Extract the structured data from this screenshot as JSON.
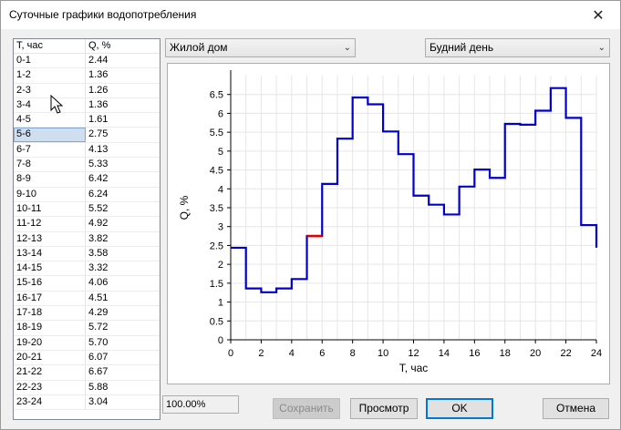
{
  "window": {
    "title": "Суточные графики водопотребления"
  },
  "table": {
    "headers": [
      "T, час",
      "Q, %"
    ],
    "rows": [
      [
        "0-1",
        "2.44"
      ],
      [
        "1-2",
        "1.36"
      ],
      [
        "2-3",
        "1.26"
      ],
      [
        "3-4",
        "1.36"
      ],
      [
        "4-5",
        "1.61"
      ],
      [
        "5-6",
        "2.75"
      ],
      [
        "6-7",
        "4.13"
      ],
      [
        "7-8",
        "5.33"
      ],
      [
        "8-9",
        "6.42"
      ],
      [
        "9-10",
        "6.24"
      ],
      [
        "10-11",
        "5.52"
      ],
      [
        "11-12",
        "4.92"
      ],
      [
        "12-13",
        "3.82"
      ],
      [
        "13-14",
        "3.58"
      ],
      [
        "14-15",
        "3.32"
      ],
      [
        "15-16",
        "4.06"
      ],
      [
        "16-17",
        "4.51"
      ],
      [
        "17-18",
        "4.29"
      ],
      [
        "18-19",
        "5.72"
      ],
      [
        "19-20",
        "5.70"
      ],
      [
        "20-21",
        "6.07"
      ],
      [
        "21-22",
        "6.67"
      ],
      [
        "22-23",
        "5.88"
      ],
      [
        "23-24",
        "3.04"
      ]
    ],
    "selected_index": 5
  },
  "controls": {
    "building_type": "Жилой дом",
    "day_type": "Будний день",
    "status": "100.00%",
    "save_label": "Сохранить",
    "preview_label": "Просмотр",
    "ok_label": "OK",
    "cancel_label": "Отмена"
  },
  "colors": {
    "series": "#0000cc",
    "highlight": "#e00000",
    "accent": "#0078d7"
  },
  "chart_data": {
    "type": "line",
    "step": true,
    "x": [
      0,
      1,
      2,
      3,
      4,
      5,
      6,
      7,
      8,
      9,
      10,
      11,
      12,
      13,
      14,
      15,
      16,
      17,
      18,
      19,
      20,
      21,
      22,
      23
    ],
    "values": [
      2.44,
      1.36,
      1.26,
      1.36,
      1.61,
      2.75,
      4.13,
      5.33,
      6.42,
      6.24,
      5.52,
      4.92,
      3.82,
      3.58,
      3.32,
      4.06,
      4.51,
      4.29,
      5.72,
      5.7,
      6.07,
      6.67,
      5.88,
      3.04
    ],
    "highlight_index": 5,
    "xlabel": "T, час",
    "ylabel": "Q, %",
    "xlim": [
      0,
      24
    ],
    "ylim": [
      0,
      7
    ],
    "xticks": [
      0,
      2,
      4,
      6,
      8,
      10,
      12,
      14,
      16,
      18,
      20,
      22,
      24
    ],
    "yticks": [
      0,
      0.5,
      1,
      1.5,
      2,
      2.5,
      3,
      3.5,
      4,
      4.5,
      5,
      5.5,
      6,
      6.5
    ],
    "grid": true
  }
}
